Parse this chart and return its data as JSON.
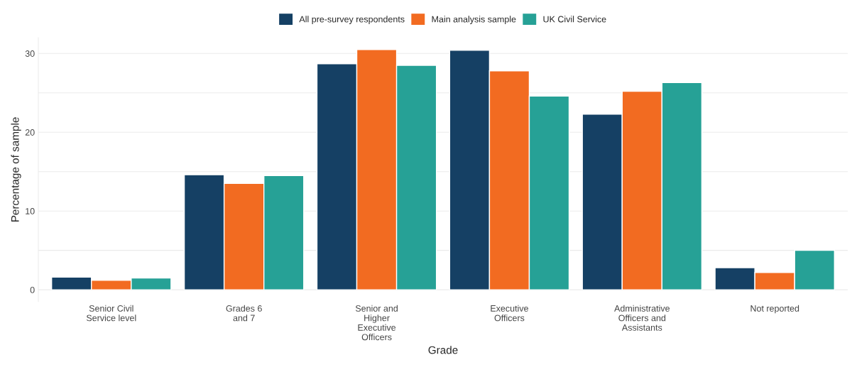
{
  "chart_data": {
    "type": "bar",
    "categories": [
      "Senior Civil\nService level",
      "Grades 6\nand 7",
      "Senior and\nHigher\nExecutive\nOfficers",
      "Executive\nOfficers",
      "Administrative\nOfficers and\nAssistants",
      "Not reported"
    ],
    "series": [
      {
        "name": "All pre-survey respondents",
        "color": "#154064",
        "values": [
          1.6,
          14.6,
          28.7,
          30.4,
          22.3,
          2.8
        ]
      },
      {
        "name": "Main analysis sample",
        "color": "#f26b21",
        "values": [
          1.2,
          13.5,
          30.5,
          27.8,
          25.2,
          2.2
        ]
      },
      {
        "name": "UK Civil Service",
        "color": "#26a196",
        "values": [
          1.5,
          14.5,
          28.5,
          24.6,
          26.3,
          5.0
        ]
      }
    ],
    "xlabel": "Grade",
    "ylabel": "Percentage of sample",
    "ylim": [
      -1.5,
      32
    ],
    "yticks": [
      0,
      {
        "value": 5,
        "label": null
      },
      10,
      {
        "value": 15,
        "label": null
      },
      20,
      {
        "value": 25,
        "label": null
      },
      30
    ],
    "grid": "y",
    "legend": "top"
  }
}
